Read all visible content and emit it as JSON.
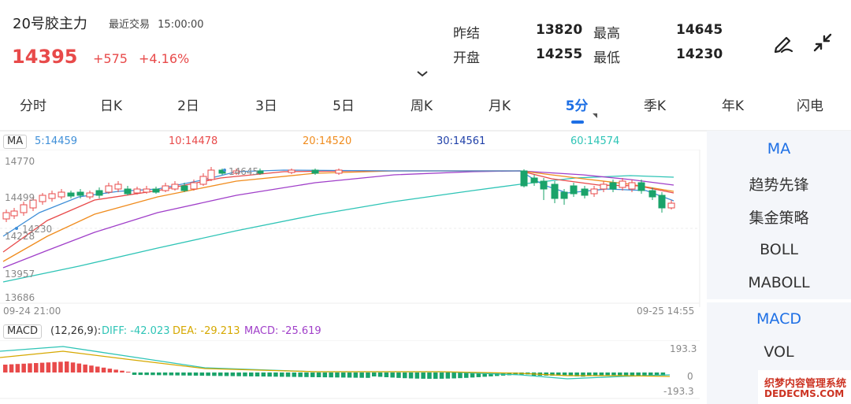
{
  "header": {
    "name": "20号胶主力",
    "status": "最近交易",
    "time": "15:00:00",
    "price": "14395",
    "change": "+575",
    "change_pct": "+4.16%",
    "quotes": [
      {
        "label": "昨结",
        "value": "13820"
      },
      {
        "label": "最高",
        "value": "14645"
      },
      {
        "label": "开盘",
        "value": "14255"
      },
      {
        "label": "最低",
        "value": "14230"
      }
    ]
  },
  "tabs": [
    "分时",
    "日K",
    "2日",
    "3日",
    "5日",
    "周K",
    "月K",
    "5分",
    "季K",
    "年K",
    "闪电"
  ],
  "active_tab": "5分",
  "ma_legend": {
    "tag": "MA",
    "items": [
      {
        "text": "5:14459",
        "color": "#3f8fd8"
      },
      {
        "text": "10:14478",
        "color": "#e84a4a"
      },
      {
        "text": "20:14520",
        "color": "#f08c1e"
      },
      {
        "text": "30:14561",
        "color": "#1e3fa8"
      },
      {
        "text": "60:14574",
        "color": "#2ec4b6"
      }
    ]
  },
  "main_axis": {
    "y_labels": [
      "14770",
      "14499",
      "14228",
      "13957",
      "13686"
    ],
    "x_start": "09-24 21:00",
    "x_end": "09-25 14:55",
    "max_annotation": "14645",
    "min_annotation": "14230"
  },
  "macd": {
    "tag": "MACD",
    "params": "(12,26,9):",
    "diff": "DIFF: -42.023",
    "dea": "DEA: -29.213",
    "macd": "MACD: -25.619",
    "colors": {
      "diff": "#2ec4b6",
      "dea": "#d6a800",
      "macd": "#a03fc9"
    },
    "y_top": "193.3",
    "y_zero": "0",
    "y_bottom": "-193.3"
  },
  "sidebar": {
    "main_indicators": [
      "MA",
      "趋势先锋",
      "集金策略",
      "BOLL",
      "MABOLL"
    ],
    "sub_indicators": [
      "MACD",
      "VOL"
    ]
  },
  "watermark": {
    "line1": "织梦内容管理系统",
    "line2": "DEDECMS.COM"
  },
  "colors": {
    "up": "#e84a4a",
    "down": "#1aa36a",
    "accent": "#1d6fe5"
  }
}
